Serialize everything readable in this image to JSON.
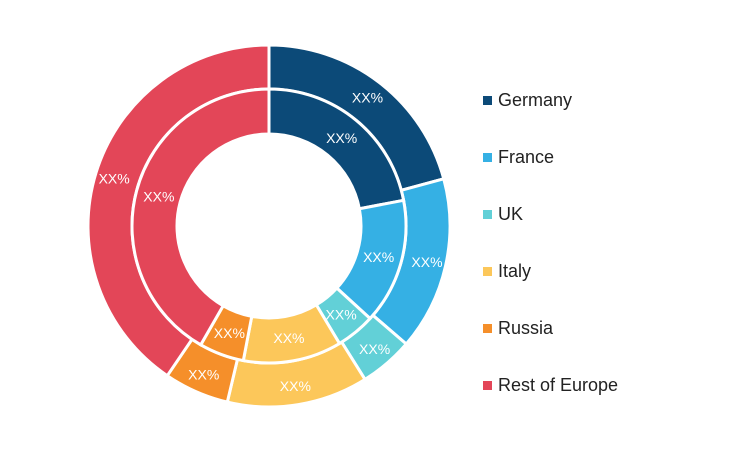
{
  "chart_data": {
    "type": "donut",
    "categories": [
      "Germany",
      "France",
      "UK",
      "Italy",
      "Russia",
      "Rest of Europe"
    ],
    "colors": [
      "#0c4a78",
      "#35b0e4",
      "#62d0d7",
      "#fcc75a",
      "#f58f2a",
      "#e34658"
    ],
    "series": [
      {
        "values": [
          20.8,
          15.5,
          4.8,
          12.6,
          5.8,
          40.5
        ],
        "labels": [
          "XX%",
          "XX%",
          "XX%",
          "XX%",
          "XX%",
          "XX%"
        ]
      },
      {
        "values": [
          22.0,
          14.8,
          4.6,
          11.6,
          5.3,
          41.7
        ],
        "labels": [
          "XX%",
          "XX%",
          "XX%",
          "XX%",
          "XX%",
          "XX%"
        ]
      }
    ],
    "legend_position": "right"
  }
}
